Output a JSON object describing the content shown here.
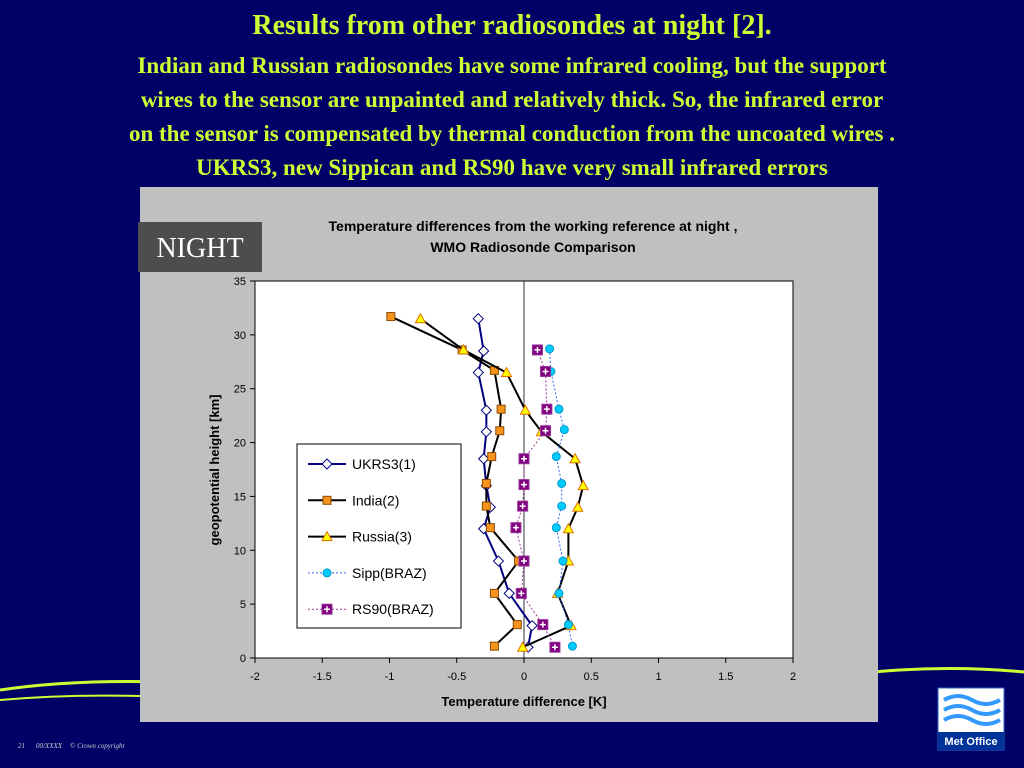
{
  "slide": {
    "title": "Results from other radiosondes at night [2].",
    "body": [
      "Indian and Russian radiosondes have some infrared cooling, but the support",
      "wires  to the sensor are unpainted and relatively thick. So, the  infrared error",
      "on the sensor is compensated by thermal conduction from  the uncoated wires .",
      "UKRS3, new Sippican and RS90 have very small infrared errors"
    ],
    "badge": "NIGHT",
    "footer": [
      "21",
      "00/XXXX",
      "© Crown copyright"
    ],
    "logo": "Met Office"
  },
  "chart_data": {
    "type": "line",
    "title": [
      "Temperature differences from the working  reference  at night ,",
      "WMO Radiosonde Comparison"
    ],
    "x_label": "Temperature difference [K]",
    "y_label": "geopotential height [km]",
    "xlim": [
      -2,
      2
    ],
    "xticks": [
      -2,
      -1.5,
      -1,
      -0.5,
      0,
      0.5,
      1,
      1.5,
      2
    ],
    "ylim": [
      0,
      35
    ],
    "yticks": [
      0,
      5,
      10,
      15,
      20,
      25,
      30,
      35
    ],
    "grid": false,
    "legend": "lower left",
    "series": [
      {
        "name": "UKRS3(1)",
        "color": "#000080",
        "marker": "diamond",
        "marker_color": "#ffffff",
        "line_style": "solid",
        "x": [
          -0.34,
          -0.3,
          -0.34,
          -0.28,
          -0.28,
          -0.3,
          -0.28,
          -0.25,
          -0.3,
          -0.19,
          -0.11,
          0.06,
          0.03
        ],
        "y": [
          31.5,
          28.5,
          26.5,
          23,
          21,
          18.5,
          16,
          14,
          12,
          9,
          6,
          3,
          1
        ]
      },
      {
        "name": "India(2)",
        "color": "#000000",
        "marker": "square",
        "marker_color": "#f7941d",
        "line_style": "solid",
        "x": [
          -0.99,
          -0.46,
          -0.22,
          -0.17,
          -0.18,
          -0.24,
          -0.28,
          -0.28,
          -0.25,
          -0.04,
          -0.22,
          -0.05,
          -0.22
        ],
        "y": [
          31.7,
          28.6,
          26.7,
          23.1,
          21.1,
          18.7,
          16.2,
          14.1,
          12.1,
          9,
          6,
          3.1,
          1.1
        ]
      },
      {
        "name": "Russia(3)",
        "color": "#000000",
        "marker": "triangle",
        "marker_color": "#ffff00",
        "line_style": "solid",
        "x": [
          -0.77,
          -0.45,
          -0.13,
          0.01,
          0.13,
          0.38,
          0.44,
          0.4,
          0.33,
          0.33,
          0.25,
          0.35,
          -0.01
        ],
        "y": [
          31.5,
          28.6,
          26.5,
          23,
          21,
          18.5,
          16,
          14,
          12,
          9,
          6,
          3,
          1
        ]
      },
      {
        "name": "Sipp(BRAZ)",
        "color": "#3366ff",
        "marker": "circle",
        "marker_color": "#00ccff",
        "line_style": "dotted",
        "x": [
          0.19,
          0.2,
          0.26,
          0.3,
          0.24,
          0.28,
          0.28,
          0.24,
          0.29,
          0.26,
          0.33,
          0.36
        ],
        "y": [
          28.7,
          26.6,
          23.1,
          21.2,
          18.7,
          16.2,
          14.1,
          12.1,
          9,
          6,
          3.1,
          1.1
        ]
      },
      {
        "name": "RS90(BRAZ)",
        "color": "#993399",
        "marker": "plus-square",
        "marker_color": "#800080",
        "line_style": "dotted",
        "x": [
          0.1,
          0.16,
          0.17,
          0.16,
          0,
          0,
          -0.01,
          -0.06,
          0,
          -0.02,
          0.14,
          0.23
        ],
        "y": [
          28.6,
          26.6,
          23.1,
          21.1,
          18.5,
          16.1,
          14.1,
          12.1,
          9,
          6,
          3.1,
          1
        ]
      }
    ]
  }
}
